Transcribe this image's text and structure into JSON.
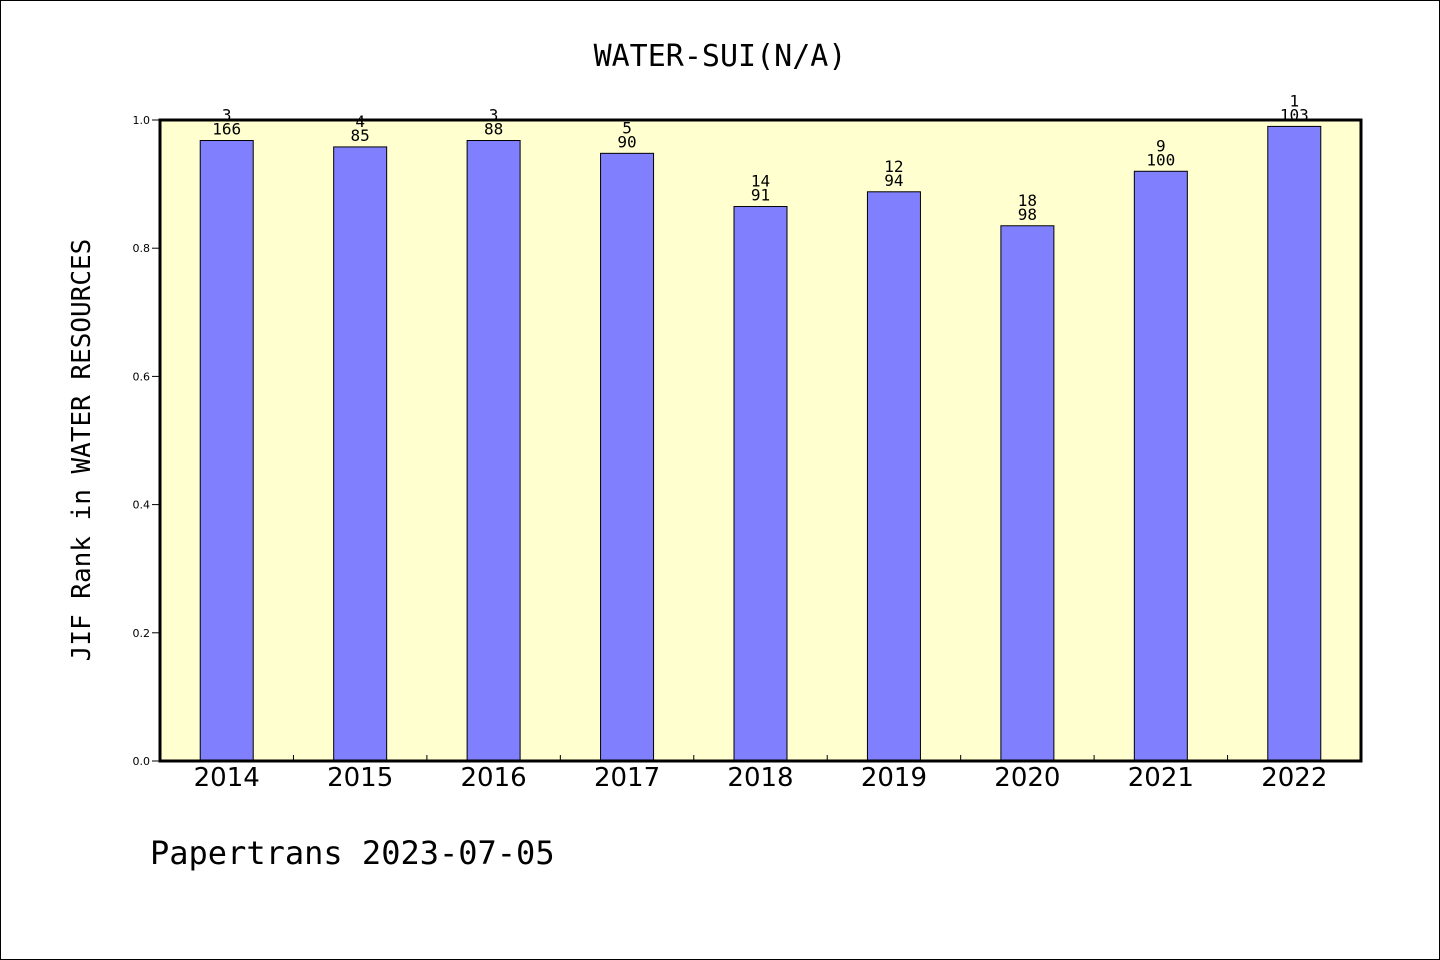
{
  "chart_data": {
    "type": "bar",
    "title": "WATER-SUI(N/A)",
    "ylabel": "JIF Rank in WATER RESOURCES",
    "xlabel": "",
    "ylim": [
      0,
      1.0
    ],
    "yticks": [
      "0.0",
      "0.2",
      "0.4",
      "0.6",
      "0.8",
      "1.0"
    ],
    "ytick_values": [
      0.0,
      0.2,
      0.4,
      0.6,
      0.8,
      1.0
    ],
    "categories": [
      "2014",
      "2015",
      "2016",
      "2017",
      "2018",
      "2019",
      "2020",
      "2021",
      "2022"
    ],
    "values": [
      0.968,
      0.958,
      0.968,
      0.948,
      0.865,
      0.888,
      0.835,
      0.92,
      0.99
    ],
    "rank": [
      "3",
      "4",
      "3",
      "5",
      "14",
      "12",
      "18",
      "9",
      "1"
    ],
    "total": [
      "166",
      "85",
      "88",
      "90",
      "91",
      "94",
      "98",
      "100",
      "103"
    ],
    "grid": false,
    "colors": {
      "plot_background": "#ffffd0",
      "bar_fill": "#8080ff",
      "bar_stroke": "#000000"
    }
  },
  "footer": {
    "text": "Papertrans 2023-07-05"
  }
}
